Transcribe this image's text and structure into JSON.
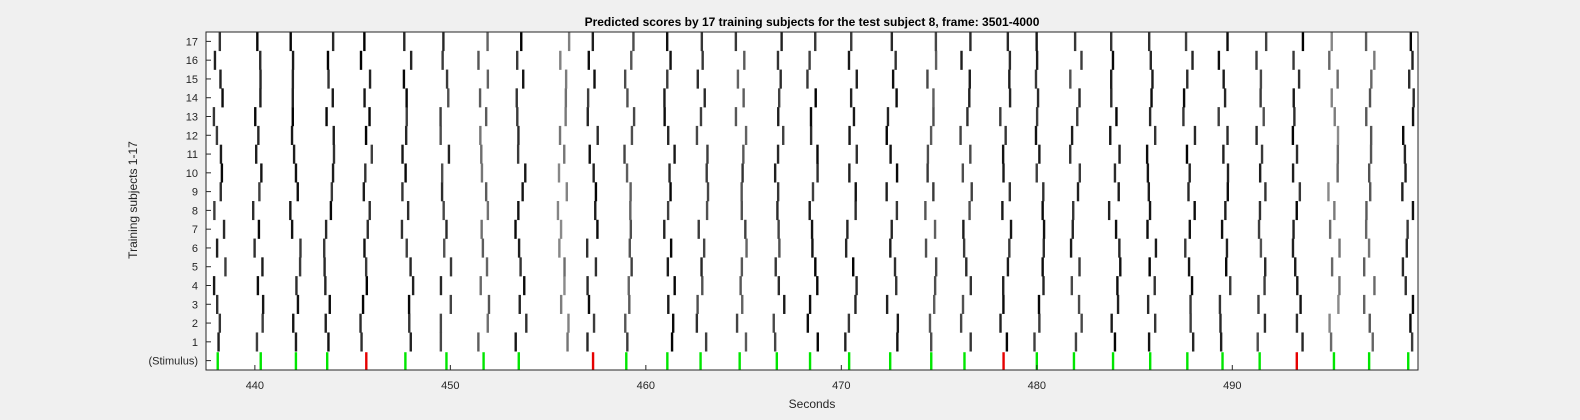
{
  "chart_data": {
    "type": "heatmap",
    "title": "Predicted scores by 17 training subjects for the test subject 8, frame: 3501-4000",
    "xlabel": "Seconds",
    "ylabel": "Training subjects 1-17",
    "xlim": [
      437.5,
      499.5
    ],
    "x_ticks": [
      440,
      450,
      460,
      470,
      480,
      490
    ],
    "y_tick_labels": [
      "(Stimulus)",
      "1",
      "2",
      "3",
      "4",
      "5",
      "6",
      "7",
      "8",
      "9",
      "10",
      "11",
      "12",
      "13",
      "14",
      "15",
      "16",
      "17"
    ],
    "stimulus_row_label": "(Stimulus)",
    "colors": {
      "background": "#ffffff",
      "figure_background": "#f0f0f0",
      "prediction": "#000000",
      "stimulus_normal": "#00e600",
      "stimulus_odd": "#e60000"
    },
    "stimulus_events": [
      {
        "t": 438.1,
        "type": "normal"
      },
      {
        "t": 440.3,
        "type": "normal"
      },
      {
        "t": 442.1,
        "type": "normal"
      },
      {
        "t": 443.7,
        "type": "normal"
      },
      {
        "t": 445.7,
        "type": "odd"
      },
      {
        "t": 447.7,
        "type": "normal"
      },
      {
        "t": 449.8,
        "type": "normal"
      },
      {
        "t": 451.7,
        "type": "normal"
      },
      {
        "t": 453.5,
        "type": "normal"
      },
      {
        "t": 457.3,
        "type": "odd"
      },
      {
        "t": 459.0,
        "type": "normal"
      },
      {
        "t": 461.1,
        "type": "normal"
      },
      {
        "t": 462.8,
        "type": "normal"
      },
      {
        "t": 464.8,
        "type": "normal"
      },
      {
        "t": 466.7,
        "type": "normal"
      },
      {
        "t": 468.4,
        "type": "normal"
      },
      {
        "t": 470.4,
        "type": "normal"
      },
      {
        "t": 472.5,
        "type": "normal"
      },
      {
        "t": 474.6,
        "type": "normal"
      },
      {
        "t": 476.3,
        "type": "normal"
      },
      {
        "t": 478.3,
        "type": "odd"
      },
      {
        "t": 480.0,
        "type": "normal"
      },
      {
        "t": 481.9,
        "type": "normal"
      },
      {
        "t": 483.9,
        "type": "normal"
      },
      {
        "t": 485.8,
        "type": "normal"
      },
      {
        "t": 487.7,
        "type": "normal"
      },
      {
        "t": 489.5,
        "type": "normal"
      },
      {
        "t": 491.4,
        "type": "normal"
      },
      {
        "t": 493.3,
        "type": "odd"
      },
      {
        "t": 495.2,
        "type": "normal"
      },
      {
        "t": 497.0,
        "type": "normal"
      },
      {
        "t": 499.0,
        "type": "normal"
      }
    ],
    "prediction_columns": [
      {
        "t": 438.2,
        "intensity": 1.0
      },
      {
        "t": 440.2,
        "intensity": 1.0
      },
      {
        "t": 442.1,
        "intensity": 1.0
      },
      {
        "t": 443.8,
        "intensity": 1.0
      },
      {
        "t": 445.7,
        "intensity": 1.0
      },
      {
        "t": 447.8,
        "intensity": 1.0
      },
      {
        "t": 449.8,
        "intensity": 0.9
      },
      {
        "t": 451.7,
        "intensity": 0.7
      },
      {
        "t": 453.6,
        "intensity": 1.0
      },
      {
        "t": 455.8,
        "intensity": 0.6
      },
      {
        "t": 457.3,
        "intensity": 1.0
      },
      {
        "t": 459.2,
        "intensity": 0.8
      },
      {
        "t": 461.2,
        "intensity": 1.0
      },
      {
        "t": 462.9,
        "intensity": 0.9
      },
      {
        "t": 464.9,
        "intensity": 0.8
      },
      {
        "t": 466.8,
        "intensity": 0.9
      },
      {
        "t": 468.5,
        "intensity": 1.0
      },
      {
        "t": 470.5,
        "intensity": 1.0
      },
      {
        "t": 472.6,
        "intensity": 1.0
      },
      {
        "t": 474.6,
        "intensity": 0.8
      },
      {
        "t": 476.4,
        "intensity": 0.9
      },
      {
        "t": 478.4,
        "intensity": 1.0
      },
      {
        "t": 480.1,
        "intensity": 1.0
      },
      {
        "t": 482.0,
        "intensity": 0.9
      },
      {
        "t": 484.0,
        "intensity": 1.0
      },
      {
        "t": 485.9,
        "intensity": 1.0
      },
      {
        "t": 487.8,
        "intensity": 1.0
      },
      {
        "t": 489.6,
        "intensity": 1.0
      },
      {
        "t": 491.5,
        "intensity": 0.9
      },
      {
        "t": 493.4,
        "intensity": 1.0
      },
      {
        "t": 495.2,
        "intensity": 0.6
      },
      {
        "t": 497.0,
        "intensity": 0.7
      },
      {
        "t": 499.0,
        "intensity": 1.0
      }
    ]
  }
}
